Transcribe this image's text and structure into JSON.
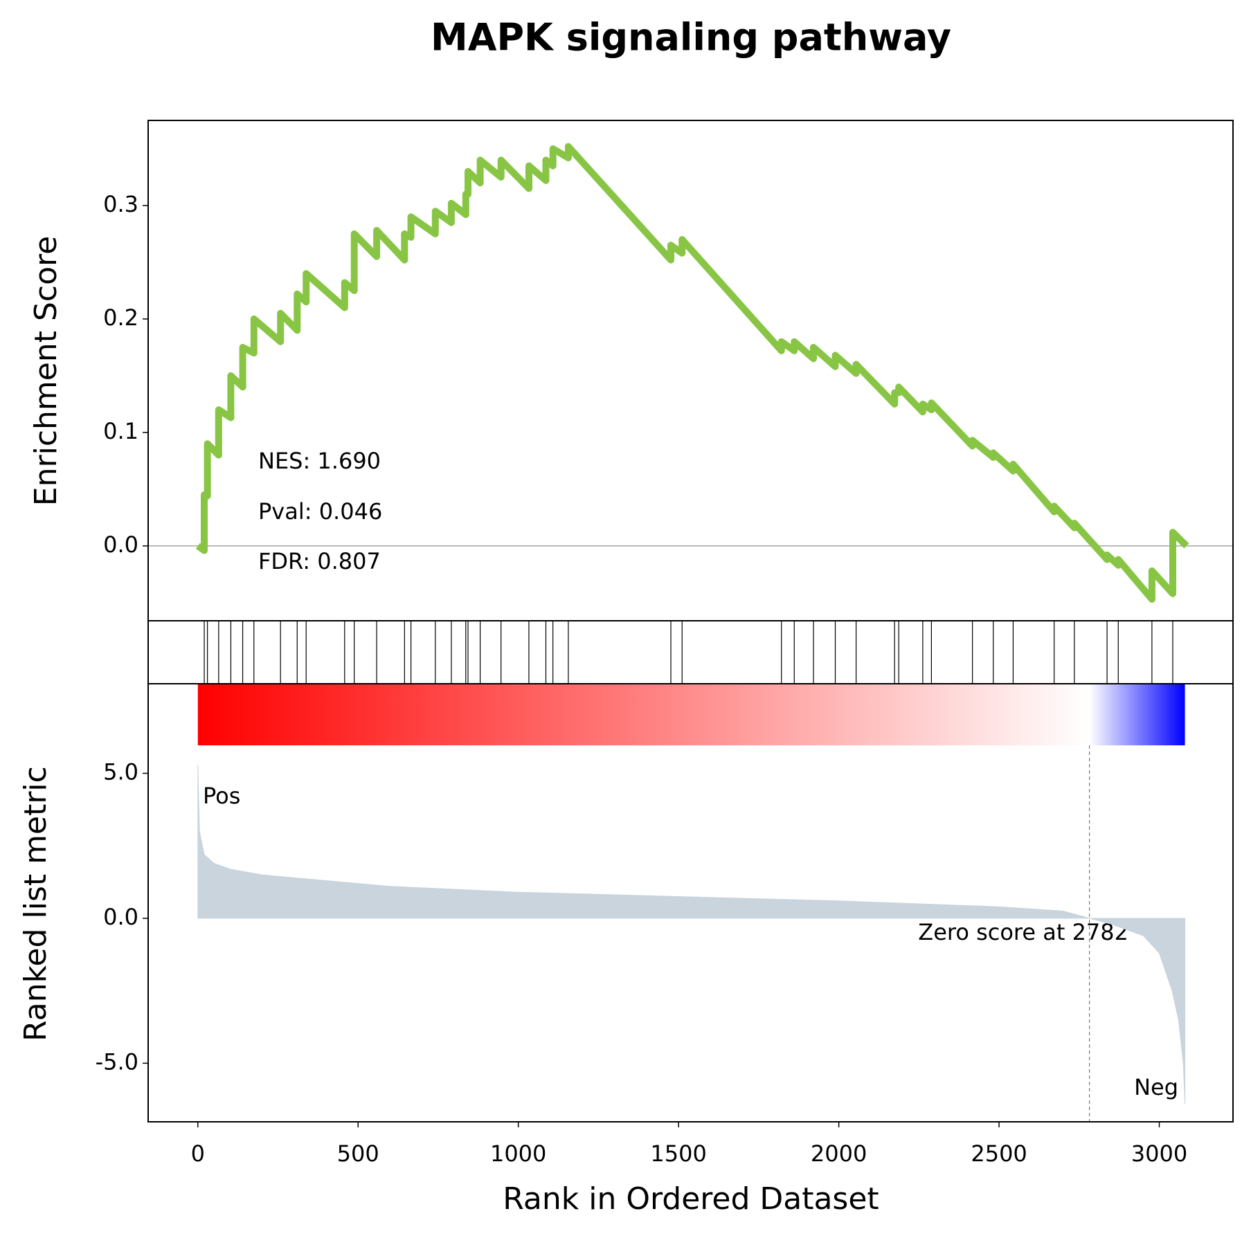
{
  "chart_data": [
    {
      "type": "line",
      "title": "MAPK signaling pathway",
      "ylabel": "Enrichment Score",
      "color": "#88c544",
      "x": [
        0,
        20,
        20,
        30,
        30,
        65,
        65,
        103,
        103,
        140,
        140,
        175,
        175,
        258,
        258,
        310,
        310,
        338,
        338,
        458,
        458,
        488,
        488,
        558,
        558,
        645,
        645,
        665,
        665,
        741,
        741,
        791,
        791,
        836,
        836,
        843,
        843,
        881,
        881,
        946,
        946,
        1033,
        1033,
        1086,
        1086,
        1108,
        1108,
        1156,
        1156,
        1476,
        1476,
        1511,
        1511,
        1821,
        1821,
        1861,
        1861,
        1921,
        1921,
        1989,
        1989,
        2054,
        2054,
        2174,
        2174,
        2187,
        2187,
        2262,
        2262,
        2289,
        2289,
        2417,
        2417,
        2482,
        2482,
        2544,
        2544,
        2672,
        2672,
        2735,
        2735,
        2837,
        2837,
        2872,
        2872,
        2977,
        2977,
        3042,
        3042,
        3085
      ],
      "values": [
        0,
        -0.004,
        0.045,
        0.044,
        0.09,
        0.08,
        0.12,
        0.113,
        0.15,
        0.14,
        0.175,
        0.17,
        0.2,
        0.18,
        0.205,
        0.19,
        0.222,
        0.215,
        0.24,
        0.21,
        0.232,
        0.225,
        0.275,
        0.255,
        0.278,
        0.252,
        0.275,
        0.272,
        0.29,
        0.275,
        0.295,
        0.285,
        0.302,
        0.292,
        0.31,
        0.31,
        0.33,
        0.32,
        0.34,
        0.325,
        0.34,
        0.315,
        0.335,
        0.322,
        0.34,
        0.335,
        0.35,
        0.342,
        0.352,
        0.252,
        0.265,
        0.258,
        0.27,
        0.172,
        0.18,
        0.172,
        0.18,
        0.165,
        0.175,
        0.158,
        0.168,
        0.152,
        0.16,
        0.125,
        0.135,
        0.135,
        0.14,
        0.118,
        0.125,
        0.12,
        0.126,
        0.088,
        0.093,
        0.078,
        0.082,
        0.066,
        0.072,
        0.03,
        0.035,
        0.016,
        0.02,
        -0.012,
        -0.008,
        -0.017,
        -0.012,
        -0.047,
        -0.022,
        -0.042,
        0.012,
        0
      ],
      "xlim": [
        -155,
        3230
      ],
      "ylim": [
        -0.066,
        0.375
      ],
      "yticks": [
        {
          "value": 0,
          "label": "0.0"
        },
        0.1,
        0.2,
        0.3
      ],
      "annotations": [
        "NES: 1.690",
        "Pval: 0.046",
        "FDR: 0.807"
      ]
    },
    {
      "type": "rug",
      "color": "#000000",
      "xlim": [
        -155,
        3230
      ],
      "x": [
        20,
        30,
        65,
        103,
        140,
        175,
        258,
        310,
        338,
        458,
        488,
        558,
        645,
        665,
        741,
        791,
        836,
        843,
        881,
        946,
        1033,
        1086,
        1108,
        1156,
        1476,
        1511,
        1821,
        1861,
        1921,
        1989,
        2054,
        2174,
        2187,
        2262,
        2289,
        2417,
        2482,
        2544,
        2672,
        2735,
        2837,
        2872,
        2977,
        3042
      ]
    },
    {
      "type": "area",
      "ylabel": "Ranked list metric",
      "xlabel": "Rank in Ordered Dataset",
      "color": "#c9d4dd",
      "x": [
        0,
        5,
        20,
        50,
        100,
        200,
        400,
        600,
        1000,
        1500,
        2000,
        2500,
        2700,
        2782,
        2850,
        2950,
        3000,
        3040,
        3060,
        3075,
        3080
      ],
      "values": [
        5.3,
        3.0,
        2.2,
        1.9,
        1.7,
        1.5,
        1.3,
        1.1,
        0.9,
        0.75,
        0.6,
        0.4,
        0.25,
        0,
        -0.2,
        -0.6,
        -1.2,
        -2.5,
        -3.5,
        -5.0,
        -6.4
      ],
      "xlim": [
        -155,
        3230
      ],
      "ylim": [
        -7.02,
        8.09
      ],
      "xticks": [
        0,
        500,
        1000,
        1500,
        2000,
        2500,
        3000
      ],
      "yticks": [
        {
          "value": 5,
          "label": "5.0"
        },
        {
          "value": 0,
          "label": "0.0"
        },
        {
          "value": -5,
          "label": "-5.0"
        }
      ],
      "zero_score": 2782,
      "zero_score_label": "Zero score at 2782",
      "colormap": [
        "#ff0000",
        "#ffffff",
        "#0000ff"
      ],
      "pos_label": "Pos",
      "pos_color": "#ff0000",
      "neg_label": "Neg",
      "neg_color": "#0000ff"
    }
  ]
}
